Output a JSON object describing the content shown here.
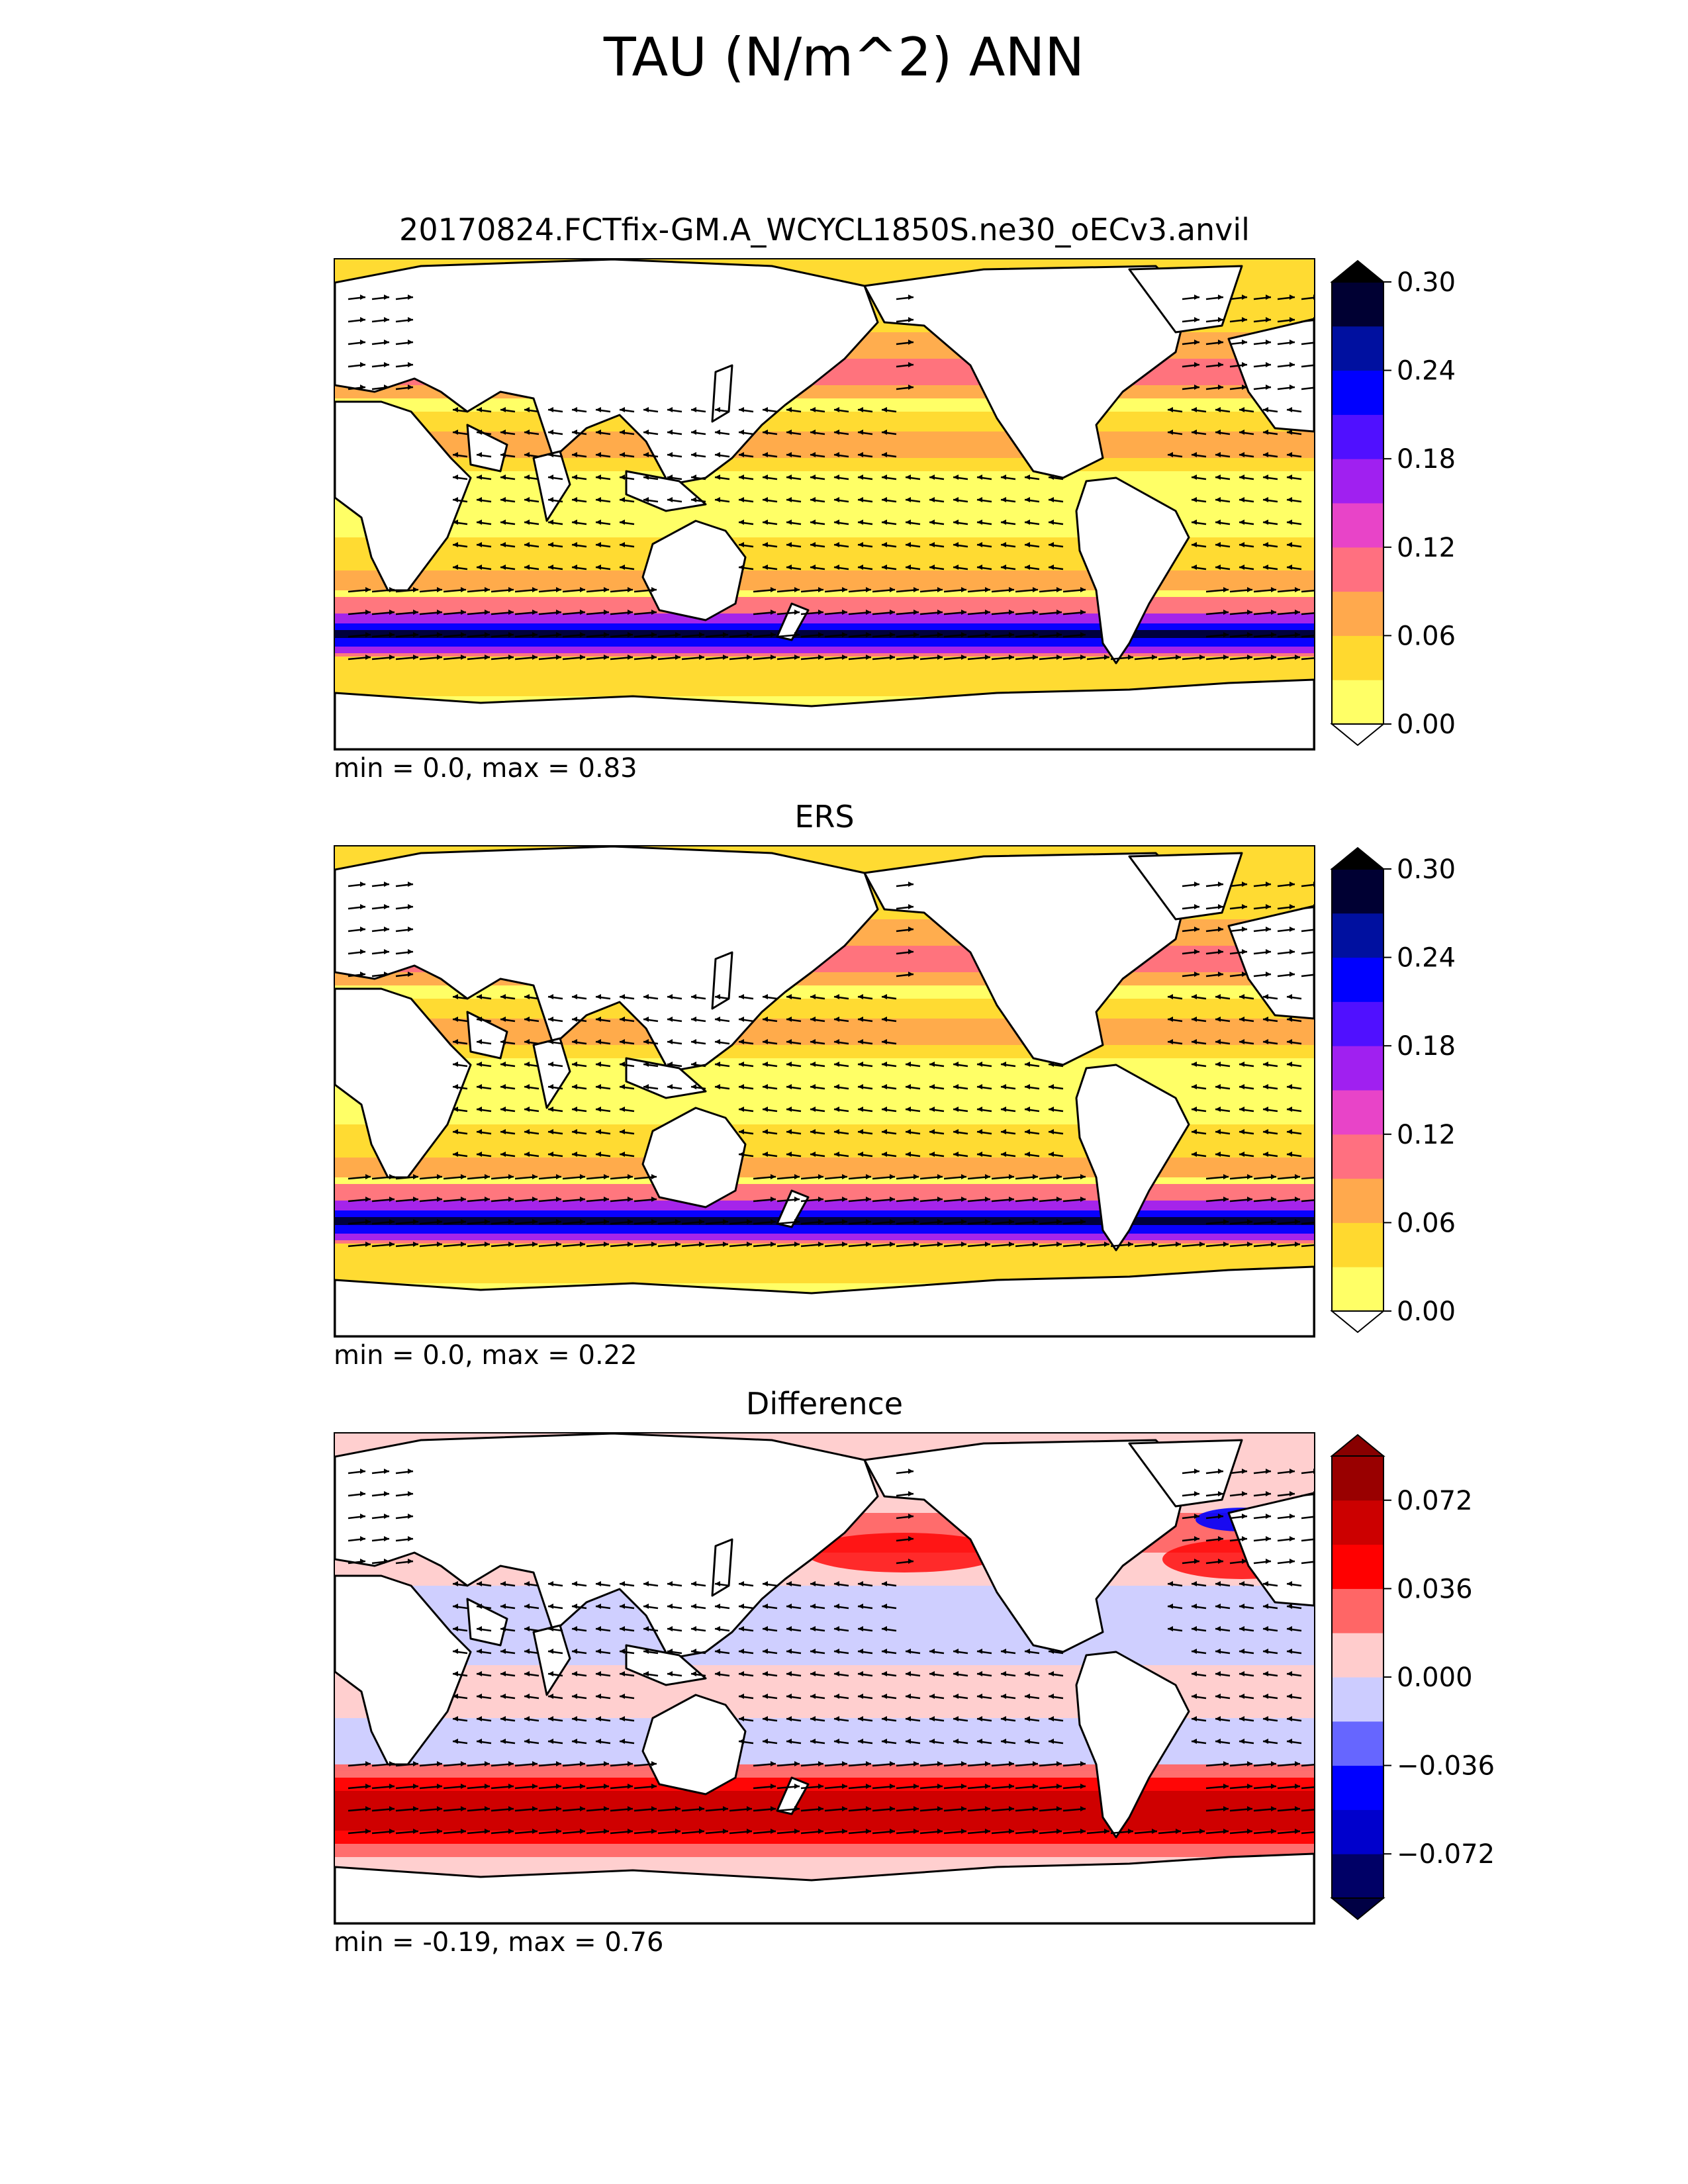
{
  "title": "TAU (N/m^2) ANN",
  "panels": [
    {
      "title": "20170824.FCTfix-GM.A_WCYCL1850S.ne30_oECv3.anvil",
      "stats": "min = 0.0, max = 0.83",
      "scheme": "magnitude",
      "colorbar": {
        "ticks": [
          "0.00",
          "0.06",
          "0.12",
          "0.18",
          "0.24",
          "0.30"
        ],
        "colors": [
          "#ffff66",
          "#ffd92f",
          "#ffa94d",
          "#ff7080",
          "#e844c8",
          "#a020f0",
          "#5010ff",
          "#0000ff",
          "#0010a0",
          "#000033"
        ],
        "extend_low": "#ffffff",
        "extend_high": "#000000"
      }
    },
    {
      "title": "ERS",
      "stats": "min = 0.0, max = 0.22",
      "scheme": "magnitude",
      "colorbar": {
        "ticks": [
          "0.00",
          "0.06",
          "0.12",
          "0.18",
          "0.24",
          "0.30"
        ],
        "colors": [
          "#ffff66",
          "#ffd92f",
          "#ffa94d",
          "#ff7080",
          "#e844c8",
          "#a020f0",
          "#5010ff",
          "#0000ff",
          "#0010a0",
          "#000033"
        ],
        "extend_low": "#ffffff",
        "extend_high": "#000000"
      }
    },
    {
      "title": "Difference",
      "stats": "min = -0.19, max = 0.76",
      "scheme": "difference",
      "colorbar": {
        "ticks": [
          "−0.072",
          "−0.036",
          "0.000",
          "0.036",
          "0.072"
        ],
        "colors": [
          "#000066",
          "#0000cc",
          "#0000ff",
          "#6666ff",
          "#ccccff",
          "#ffcccc",
          "#ff6666",
          "#ff0000",
          "#cc0000",
          "#990000"
        ],
        "extend_low": "#000044",
        "extend_high": "#880000"
      }
    }
  ],
  "chart_data": {
    "type": "heatmap",
    "variable": "TAU",
    "units": "N/m^2",
    "season": "ANN",
    "fields": [
      {
        "name": "20170824.FCTfix-GM.A_WCYCL1850S.ne30_oECv3.anvil",
        "min": 0.0,
        "max": 0.83,
        "levels": [
          0.0,
          0.03,
          0.06,
          0.09,
          0.12,
          0.15,
          0.18,
          0.21,
          0.24,
          0.27,
          0.3
        ]
      },
      {
        "name": "ERS",
        "min": 0.0,
        "max": 0.22,
        "levels": [
          0.0,
          0.03,
          0.06,
          0.09,
          0.12,
          0.15,
          0.18,
          0.21,
          0.24,
          0.27,
          0.3
        ]
      },
      {
        "name": "Difference",
        "min": -0.19,
        "max": 0.76,
        "levels": [
          -0.09,
          -0.072,
          -0.054,
          -0.036,
          -0.018,
          0.0,
          0.018,
          0.036,
          0.054,
          0.072,
          0.09
        ]
      }
    ],
    "map_projection": "global equirectangular, centered on Pacific, with coastlines and wind-stress vectors"
  }
}
